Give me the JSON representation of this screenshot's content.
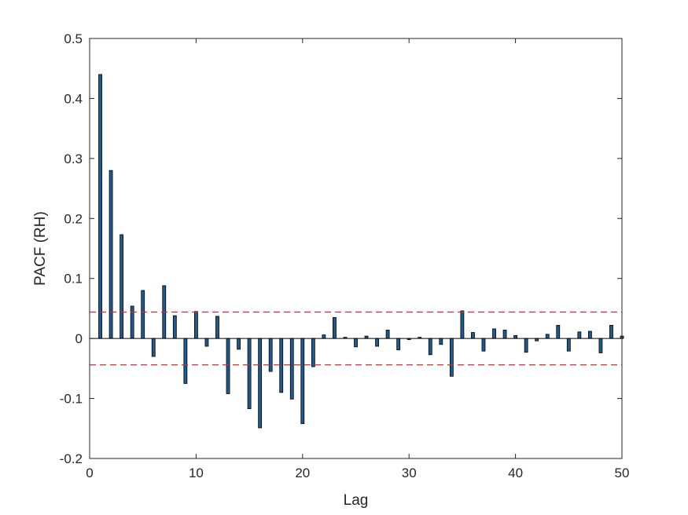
{
  "chart_data": {
    "type": "bar",
    "title": "",
    "xlabel": "Lag",
    "ylabel": "PACF (RH)",
    "xlim": [
      0,
      50
    ],
    "ylim": [
      -0.2,
      0.5
    ],
    "xticks": [
      "0",
      "10",
      "20",
      "30",
      "40",
      "50"
    ],
    "yticks": [
      "-0.2",
      "-0.1",
      "0",
      "0.1",
      "0.2",
      "0.3",
      "0.4",
      "0.5"
    ],
    "grid": false,
    "bar_color": "#1f5b8f",
    "bar_edge_color": "#000000",
    "confidence_bound": 0.044,
    "confidence_line_color": "#d9262e",
    "lags": [
      1,
      2,
      3,
      4,
      5,
      6,
      7,
      8,
      9,
      10,
      11,
      12,
      13,
      14,
      15,
      16,
      17,
      18,
      19,
      20,
      21,
      22,
      23,
      24,
      25,
      26,
      27,
      28,
      29,
      30,
      31,
      32,
      33,
      34,
      35,
      36,
      37,
      38,
      39,
      40,
      41,
      42,
      43,
      44,
      45,
      46,
      47,
      48,
      49,
      50
    ],
    "values": [
      0.44,
      0.28,
      0.173,
      0.054,
      0.08,
      -0.03,
      0.088,
      0.038,
      -0.075,
      0.045,
      -0.013,
      0.037,
      -0.092,
      -0.018,
      -0.117,
      -0.149,
      -0.055,
      -0.09,
      -0.101,
      -0.142,
      -0.047,
      0.006,
      0.035,
      0.002,
      -0.014,
      0.004,
      -0.013,
      0.014,
      -0.019,
      -0.002,
      0.002,
      -0.027,
      -0.01,
      -0.063,
      0.046,
      0.01,
      -0.021,
      0.016,
      0.014,
      0.005,
      -0.023,
      -0.004,
      0.007,
      0.022,
      -0.021,
      0.011,
      0.012,
      -0.024,
      0.022,
      0.004
    ]
  }
}
